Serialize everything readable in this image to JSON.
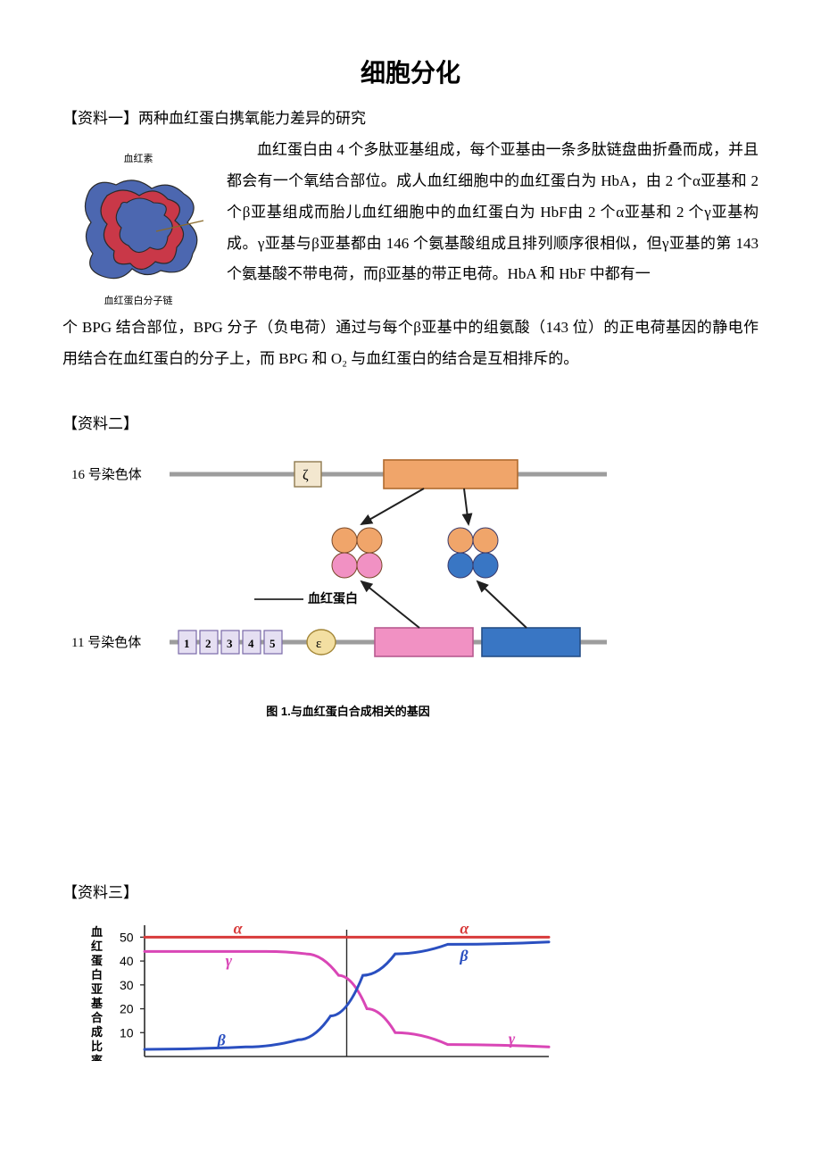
{
  "document": {
    "title": "细胞分化",
    "material1": {
      "heading": "【资料一】两种血红蛋白携氧能力差异的研究",
      "image": {
        "caption_top": "血红素",
        "caption_bottom": "血红蛋白分子链",
        "colors": {
          "chain_a": "#c93848",
          "chain_b": "#4c67b0",
          "outline": "#2a2a2a"
        }
      },
      "paragraph_right": "血红蛋白由 4 个多肽亚基组成，每个亚基由一条多肽链盘曲折叠而成，并且都会有一个氧结合部位。成人血红细胞中的血红蛋白为 HbA，由 2 个α亚基和 2 个β亚基组成而胎儿血红细胞中的血红蛋白为 HbF由 2 个α亚基和 2 个γ亚基构成。γ亚基与β亚基都由 146 个氨基酸组成且排列顺序很相似，但γ亚基的第 143 个氨基酸不带电荷，而β亚基的带正电荷。HbA 和 HbF 中都有一",
      "paragraph_cont": "个 BPG 结合部位，BPG 分子（负电荷）通过与每个β亚基中的组氨酸（143 位）的正电荷基因的静电作用结合在血红蛋白的分子上，而 BPG 和 O₂ 与血红蛋白的结合是互相排斥的。"
    },
    "material2": {
      "heading": "【资料二】",
      "diagram": {
        "chrom16_label": "16 号染色体",
        "chrom11_label": "11 号染色体",
        "zeta_label": "ζ",
        "epsilon_label": "ε",
        "small_boxes": [
          "1",
          "2",
          "3",
          "4",
          "5"
        ],
        "hb_label": "血红蛋白",
        "figure_caption": "图 1.与血红蛋白合成相关的基因",
        "colors": {
          "line": "#9d9d9d",
          "zeta_box_fill": "#f3e7cf",
          "zeta_box_stroke": "#8f7a4f",
          "alpha_box_fill": "#f0a56a",
          "alpha_box_stroke": "#b06a2f",
          "pink_box_fill": "#f191c3",
          "pink_box_stroke": "#b85a90",
          "blue_box_fill": "#3976c4",
          "blue_box_stroke": "#264f87",
          "small_box_fill": "#e5dff2",
          "small_box_stroke": "#7a6aa8",
          "epsilon_fill": "#f3dfa2",
          "epsilon_stroke": "#a38636",
          "orange_sub": "#f0a56a",
          "pink_sub": "#f191c3",
          "blue_sub": "#3976c4",
          "arrow": "#202020"
        }
      }
    },
    "material3": {
      "heading": "【资料三】",
      "chart": {
        "y_axis_label": "血红蛋白亚基合成比率",
        "y_ticks": [
          "10",
          "20",
          "30",
          "40",
          "50"
        ],
        "series": {
          "alpha": {
            "label": "α",
            "color": "#d83a3a",
            "points": [
              [
                0,
                50
              ],
              [
                40,
                50
              ],
              [
                50,
                50
              ],
              [
                60,
                50
              ],
              [
                100,
                50
              ]
            ]
          },
          "gamma": {
            "label": "γ",
            "color": "#d946b6",
            "points": [
              [
                0,
                44
              ],
              [
                30,
                44
              ],
              [
                40,
                43
              ],
              [
                48,
                34
              ],
              [
                55,
                20
              ],
              [
                62,
                10
              ],
              [
                75,
                5
              ],
              [
                100,
                4
              ]
            ]
          },
          "beta": {
            "label": "β",
            "color": "#2a4fc0",
            "points": [
              [
                0,
                3
              ],
              [
                25,
                4
              ],
              [
                38,
                7
              ],
              [
                46,
                17
              ],
              [
                54,
                34
              ],
              [
                62,
                43
              ],
              [
                75,
                47
              ],
              [
                100,
                48
              ]
            ]
          }
        },
        "ylim": [
          0,
          55
        ],
        "axis_color": "#2a2a2a",
        "background": "#ffffff",
        "label_fontsize": 13,
        "tick_fontsize": 14
      }
    }
  }
}
